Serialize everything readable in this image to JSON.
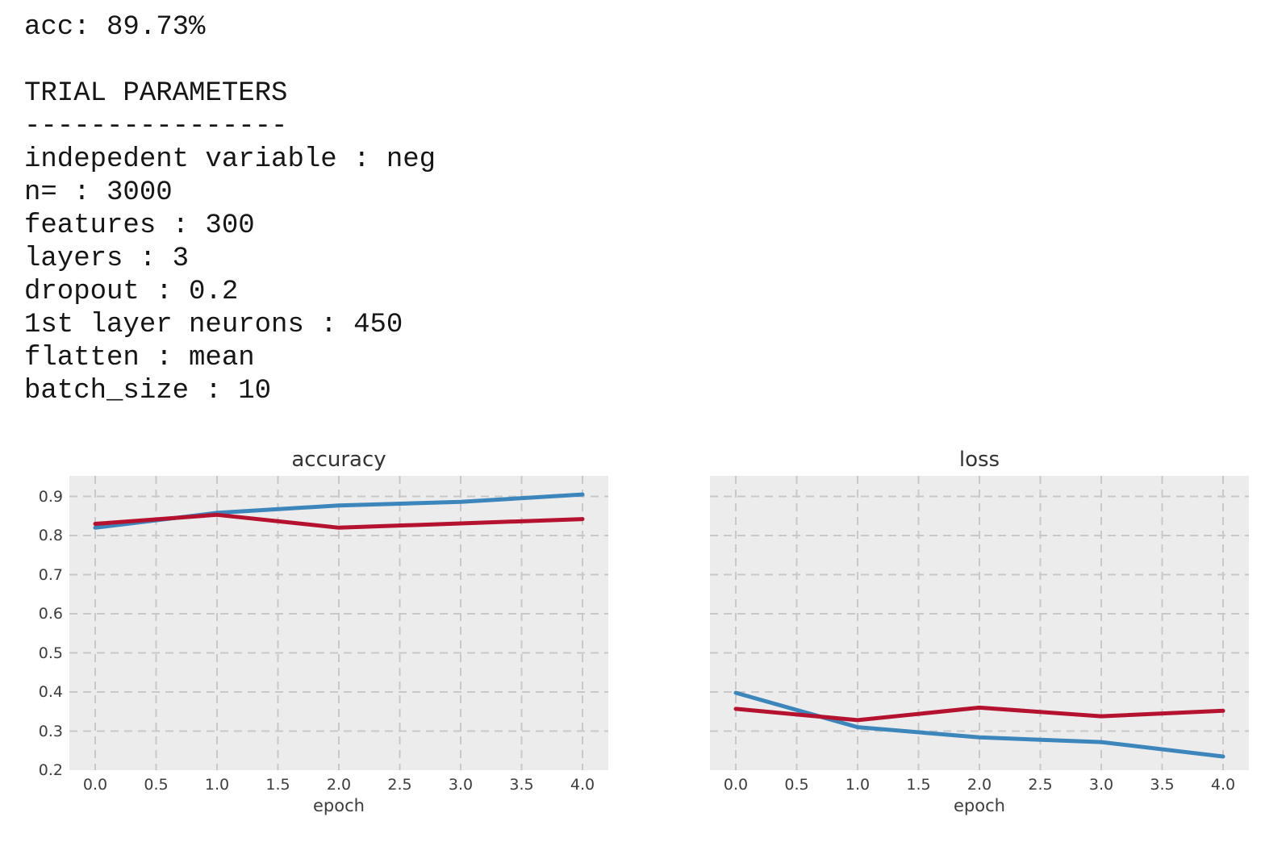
{
  "output_text": {
    "lines": [
      "acc: 89.73%",
      "",
      "TRIAL PARAMETERS",
      "----------------",
      "indepedent variable : neg",
      "n= : 3000",
      "features : 300",
      "layers : 3",
      "dropout : 0.2",
      "1st layer neurons : 450",
      "flatten : mean",
      "batch_size : 10"
    ]
  },
  "colors": {
    "line_blue": "#3c86bb",
    "line_red": "#b5122f",
    "plot_background": "#ececec",
    "grid": "#c8c8c8",
    "tick_label": "#3d3d3d",
    "title": "#333333"
  },
  "chart_data": [
    {
      "type": "line",
      "title": "accuracy",
      "xlabel": "epoch",
      "ylabel": "",
      "x": [
        0,
        1,
        2,
        3,
        4
      ],
      "x_tick_labels": [
        "0.0",
        "0.5",
        "1.0",
        "1.5",
        "2.0",
        "2.5",
        "3.0",
        "3.5",
        "4.0"
      ],
      "y_tick_labels": [
        "0.9",
        "0.8",
        "0.7",
        "0.6",
        "0.5",
        "0.4",
        "0.3",
        "0.2"
      ],
      "y_gridlines": [
        0.3,
        0.4,
        0.5,
        0.6,
        0.7,
        0.8,
        0.9
      ],
      "xlim": [
        -0.21,
        4.21
      ],
      "ylim": [
        0.2,
        0.953
      ],
      "grid": "dashed",
      "legend": "none",
      "series": [
        {
          "name": "blue-line",
          "color_key": "line_blue",
          "values": [
            0.82,
            0.858,
            0.877,
            0.886,
            0.905
          ]
        },
        {
          "name": "red-line",
          "color_key": "line_red",
          "values": [
            0.83,
            0.853,
            0.82,
            0.831,
            0.842
          ]
        }
      ]
    },
    {
      "type": "line",
      "title": "loss",
      "xlabel": "epoch",
      "ylabel": "",
      "x": [
        0,
        1,
        2,
        3,
        4
      ],
      "x_tick_labels": [
        "0.0",
        "0.5",
        "1.0",
        "1.5",
        "2.0",
        "2.5",
        "3.0",
        "3.5",
        "4.0"
      ],
      "y_tick_labels": [],
      "y_gridlines": [
        0.3,
        0.4,
        0.5,
        0.6,
        0.7,
        0.8,
        0.9
      ],
      "xlim": [
        -0.21,
        4.21
      ],
      "ylim": [
        0.2,
        0.953
      ],
      "grid": "dashed",
      "legend": "none",
      "series": [
        {
          "name": "blue-line",
          "color_key": "line_blue",
          "values": [
            0.398,
            0.31,
            0.284,
            0.272,
            0.235
          ]
        },
        {
          "name": "red-line",
          "color_key": "line_red",
          "values": [
            0.357,
            0.328,
            0.36,
            0.338,
            0.352
          ]
        }
      ]
    }
  ]
}
